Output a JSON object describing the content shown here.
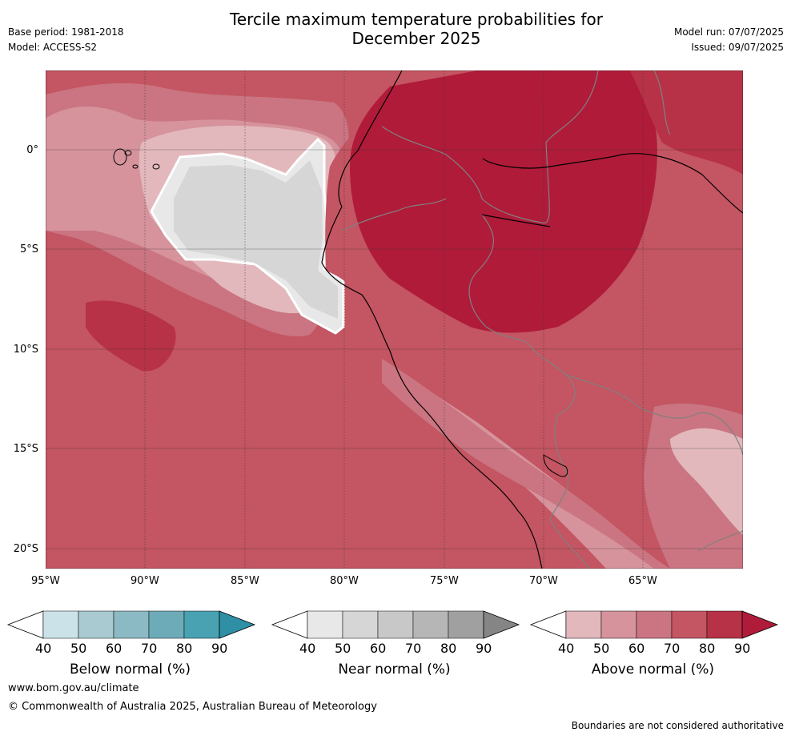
{
  "header": {
    "title_line1": "Tercile maximum temperature probabilities for",
    "title_line2": "December 2025",
    "base_period": "Base period: 1981-2018",
    "model": "Model: ACCESS-S2",
    "model_run": "Model run: 07/07/2025",
    "issued": "Issued: 09/07/2025"
  },
  "map": {
    "lon_ticks": [
      "95°W",
      "90°W",
      "85°W",
      "80°W",
      "75°W",
      "70°W",
      "65°W"
    ],
    "lat_ticks": [
      "0°",
      "5°S",
      "10°S",
      "15°S",
      "20°S"
    ],
    "lon_range": [
      -95,
      -60
    ],
    "lat_range": [
      -21,
      4
    ],
    "ocean_base_color": "#c45562",
    "coast_color": "#000000",
    "border_color": "#808080"
  },
  "colorbars": [
    {
      "name": "below",
      "label": "Below normal (%)",
      "ticks": [
        "40",
        "50",
        "60",
        "70",
        "80",
        "90"
      ],
      "colors": [
        "#cbe3e8",
        "#a8cad0",
        "#8bb9c4",
        "#6eabb8",
        "#48a2b2"
      ],
      "over": "#2e8fa5"
    },
    {
      "name": "near",
      "label": "Near normal (%)",
      "ticks": [
        "40",
        "50",
        "60",
        "70",
        "80",
        "90"
      ],
      "colors": [
        "#e8e8e8",
        "#d6d6d6",
        "#c8c8c8",
        "#b6b6b6",
        "#a0a0a0"
      ],
      "over": "#858585"
    },
    {
      "name": "above",
      "label": "Above normal (%)",
      "ticks": [
        "40",
        "50",
        "60",
        "70",
        "80",
        "90"
      ],
      "colors": [
        "#e2b8bd",
        "#d6939c",
        "#ca7581",
        "#c45562",
        "#b73246"
      ],
      "over": "#b01b3a"
    }
  ],
  "footer": {
    "website": "www.bom.gov.au/climate",
    "copyright": "© Commonwealth of Australia 2025, Australian Bureau of Meteorology",
    "disclaimer": "Boundaries are not considered authoritative"
  }
}
